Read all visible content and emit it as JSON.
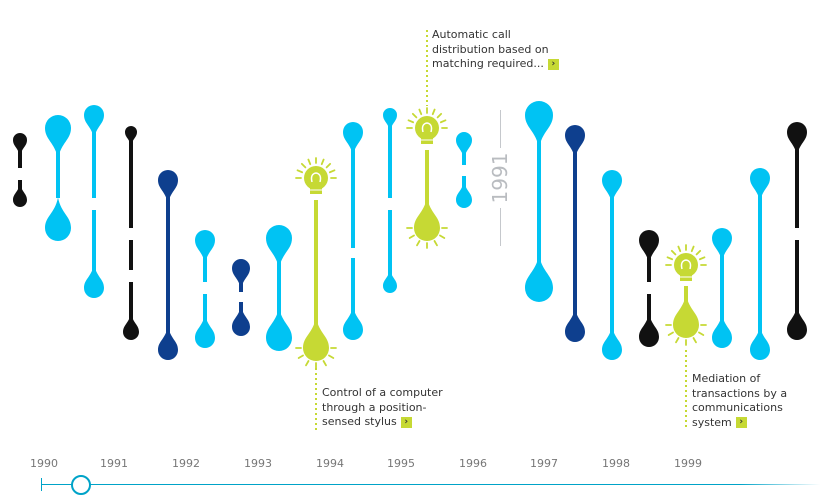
{
  "colors": {
    "cyan": "#00c3f3",
    "navy": "#0e3f8e",
    "black": "#111111",
    "lime": "#c6d934",
    "timeline": "#00a3c8"
  },
  "current_year_watermark": "1991",
  "icons": {
    "idea": "lightbulb-icon",
    "more": "chevron-right-icon"
  },
  "annotations": [
    {
      "id": "call-distribution",
      "text": "Automatic call distribution based on matching required...",
      "arrow": "›"
    },
    {
      "id": "computer-stylus",
      "text": "Control of a computer through a position-sensed stylus",
      "arrow": "›"
    },
    {
      "id": "mediation",
      "text": "Mediation of transactions by a communications system",
      "arrow": "›"
    }
  ],
  "timeline": {
    "years": [
      "1990",
      "1991",
      "1992",
      "1993",
      "1994",
      "1995",
      "1996",
      "1997",
      "1998",
      "1999"
    ],
    "selected_year": "1990"
  }
}
